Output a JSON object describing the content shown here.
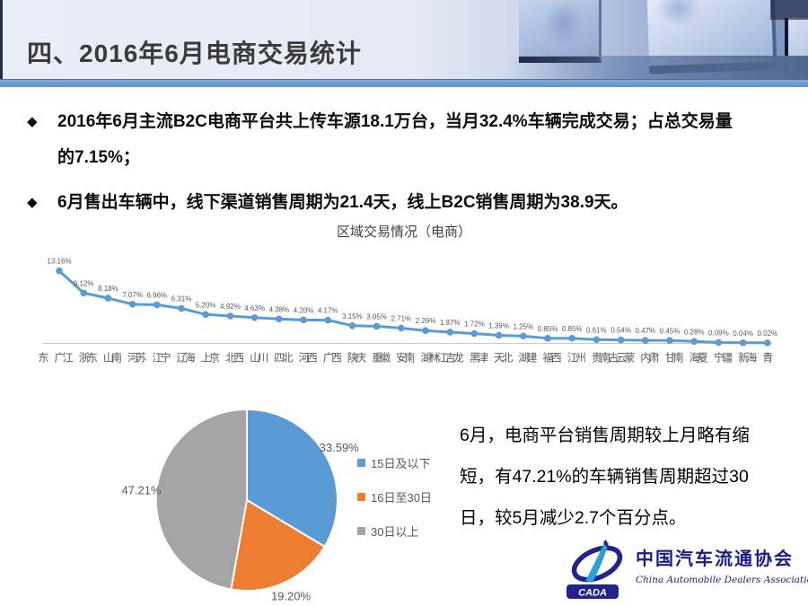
{
  "header": {
    "title": "四、2016年6月电商交易统计"
  },
  "bullets": [
    "2016年6月主流B2C电商平台共上传车源18.1万台，当月32.4%车辆完成交易；占总交易量的7.15%；",
    "6月售出车辆中，线下渠道销售周期为21.4天，线上B2C销售周期为38.9天。"
  ],
  "chart_data": [
    {
      "type": "line",
      "title": "区域交易情况（电商）",
      "categories": [
        "广东",
        "浙江",
        "山东",
        "河南",
        "江苏",
        "辽宁",
        "上海",
        "北京",
        "山西",
        "四川",
        "河北",
        "广西",
        "陕西",
        "重庆",
        "安徽",
        "湖南",
        "吉林",
        "黑龙江",
        "天津",
        "湖北",
        "福建",
        "江西",
        "贵州",
        "云南",
        "内蒙古",
        "甘肃",
        "海南",
        "宁夏",
        "新疆",
        "青海"
      ],
      "values": [
        13.16,
        9.12,
        8.18,
        7.07,
        6.96,
        6.31,
        5.2,
        4.92,
        4.63,
        4.38,
        4.2,
        4.17,
        3.15,
        3.05,
        2.71,
        2.26,
        1.97,
        1.72,
        1.39,
        1.25,
        0.85,
        0.85,
        0.61,
        0.54,
        0.47,
        0.45,
        0.28,
        0.09,
        0.04,
        0.02
      ],
      "unit": "%",
      "ylim": [
        0,
        14
      ],
      "grid": false,
      "data_labels": true,
      "line_color": "#5b9bd5",
      "marker_color": "#5b9bd5",
      "label_color": "#595959",
      "axis_color": "#c9c9c9",
      "legend_position": "none"
    },
    {
      "type": "pie",
      "labels": [
        "15日及以下",
        "16日至30日",
        "30日以上"
      ],
      "values": [
        33.59,
        19.2,
        47.21
      ],
      "display_values": [
        "33.59%",
        "19.20%",
        "47.21%"
      ],
      "colors": [
        "#5b9bd5",
        "#ed7d31",
        "#a5a5a5"
      ],
      "start_angle": -90,
      "label_color": "#595959",
      "legend_position": "right"
    }
  ],
  "commentary": "6月，电商平台销售周期较上月略有缩短，有47.21%的车辆销售周期超过30日，较5月减少2.7个百分点。",
  "logo": {
    "mark_text": "CADA",
    "cn": "中国汽车流通协会",
    "en": "China Automobile Dealers Association",
    "navy": "#1b1b8c",
    "light_blue": "#2f9fd8"
  },
  "colors": {
    "header_bar": "#5b92c8",
    "title_text": "#3b3b3b",
    "bullet_marker": "◆"
  }
}
